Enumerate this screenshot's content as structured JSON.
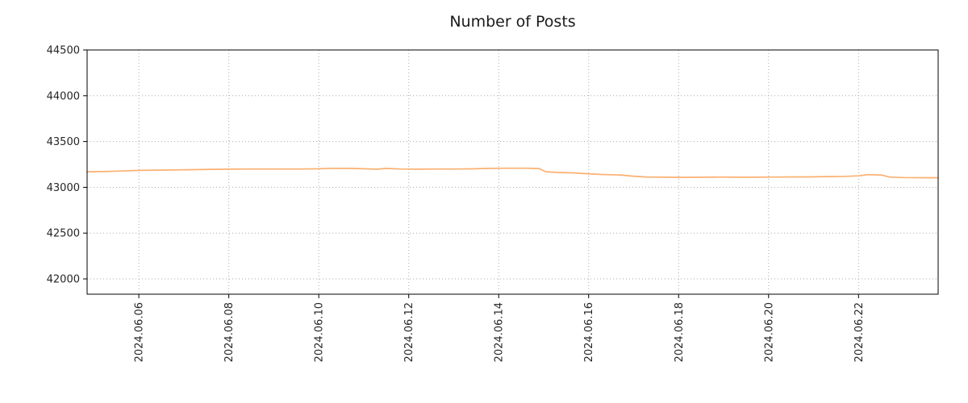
{
  "chart_data": {
    "type": "line",
    "title": "Number of Posts",
    "xlabel": "",
    "ylabel": "",
    "grid": true,
    "legend": "none",
    "line_color": "#fbb070",
    "axis_color": "#000000",
    "grid_color": "#aaaaaa",
    "xlim": [
      4.85,
      23.77
    ],
    "ylim": [
      41833,
      44500
    ],
    "y_ticks": [
      {
        "value": 42000,
        "label": "42000"
      },
      {
        "value": 42500,
        "label": "42500"
      },
      {
        "value": 43000,
        "label": "43000"
      },
      {
        "value": 43500,
        "label": "43500"
      },
      {
        "value": 44000,
        "label": "44000"
      },
      {
        "value": 44500,
        "label": "44500"
      }
    ],
    "x_ticks": [
      {
        "pos": 6,
        "label": "2024.06.06"
      },
      {
        "pos": 8,
        "label": "2024.06.08"
      },
      {
        "pos": 10,
        "label": "2024.06.10"
      },
      {
        "pos": 12,
        "label": "2024.06.12"
      },
      {
        "pos": 14,
        "label": "2024.06.14"
      },
      {
        "pos": 16,
        "label": "2024.06.16"
      },
      {
        "pos": 18,
        "label": "2024.06.18"
      },
      {
        "pos": 20,
        "label": "2024.06.20"
      },
      {
        "pos": 22,
        "label": "2024.06.22"
      }
    ],
    "series": [
      {
        "name": "Number of Posts",
        "points": [
          [
            4.85,
            43170
          ],
          [
            5.2,
            43172
          ],
          [
            5.6,
            43178
          ],
          [
            6.0,
            43185
          ],
          [
            6.4,
            43188
          ],
          [
            6.8,
            43190
          ],
          [
            7.2,
            43193
          ],
          [
            7.6,
            43196
          ],
          [
            8.0,
            43198
          ],
          [
            8.4,
            43200
          ],
          [
            8.8,
            43200
          ],
          [
            9.2,
            43200
          ],
          [
            9.6,
            43200
          ],
          [
            10.0,
            43203
          ],
          [
            10.3,
            43208
          ],
          [
            10.7,
            43207
          ],
          [
            11.0,
            43203
          ],
          [
            11.3,
            43198
          ],
          [
            11.5,
            43207
          ],
          [
            11.8,
            43200
          ],
          [
            12.2,
            43198
          ],
          [
            12.6,
            43200
          ],
          [
            13.0,
            43200
          ],
          [
            13.4,
            43202
          ],
          [
            13.8,
            43207
          ],
          [
            14.2,
            43209
          ],
          [
            14.6,
            43209
          ],
          [
            14.9,
            43205
          ],
          [
            15.05,
            43170
          ],
          [
            15.3,
            43163
          ],
          [
            15.7,
            43157
          ],
          [
            16.0,
            43148
          ],
          [
            16.3,
            43140
          ],
          [
            16.7,
            43135
          ],
          [
            17.0,
            43122
          ],
          [
            17.3,
            43113
          ],
          [
            17.7,
            43110
          ],
          [
            18.1,
            43109
          ],
          [
            18.5,
            43110
          ],
          [
            18.9,
            43112
          ],
          [
            19.3,
            43110
          ],
          [
            19.7,
            43110
          ],
          [
            20.1,
            43112
          ],
          [
            20.5,
            43114
          ],
          [
            20.9,
            43114
          ],
          [
            21.3,
            43117
          ],
          [
            21.7,
            43120
          ],
          [
            22.0,
            43125
          ],
          [
            22.2,
            43138
          ],
          [
            22.5,
            43135
          ],
          [
            22.7,
            43112
          ],
          [
            23.0,
            43107
          ],
          [
            23.4,
            43105
          ],
          [
            23.77,
            43105
          ]
        ]
      }
    ]
  }
}
